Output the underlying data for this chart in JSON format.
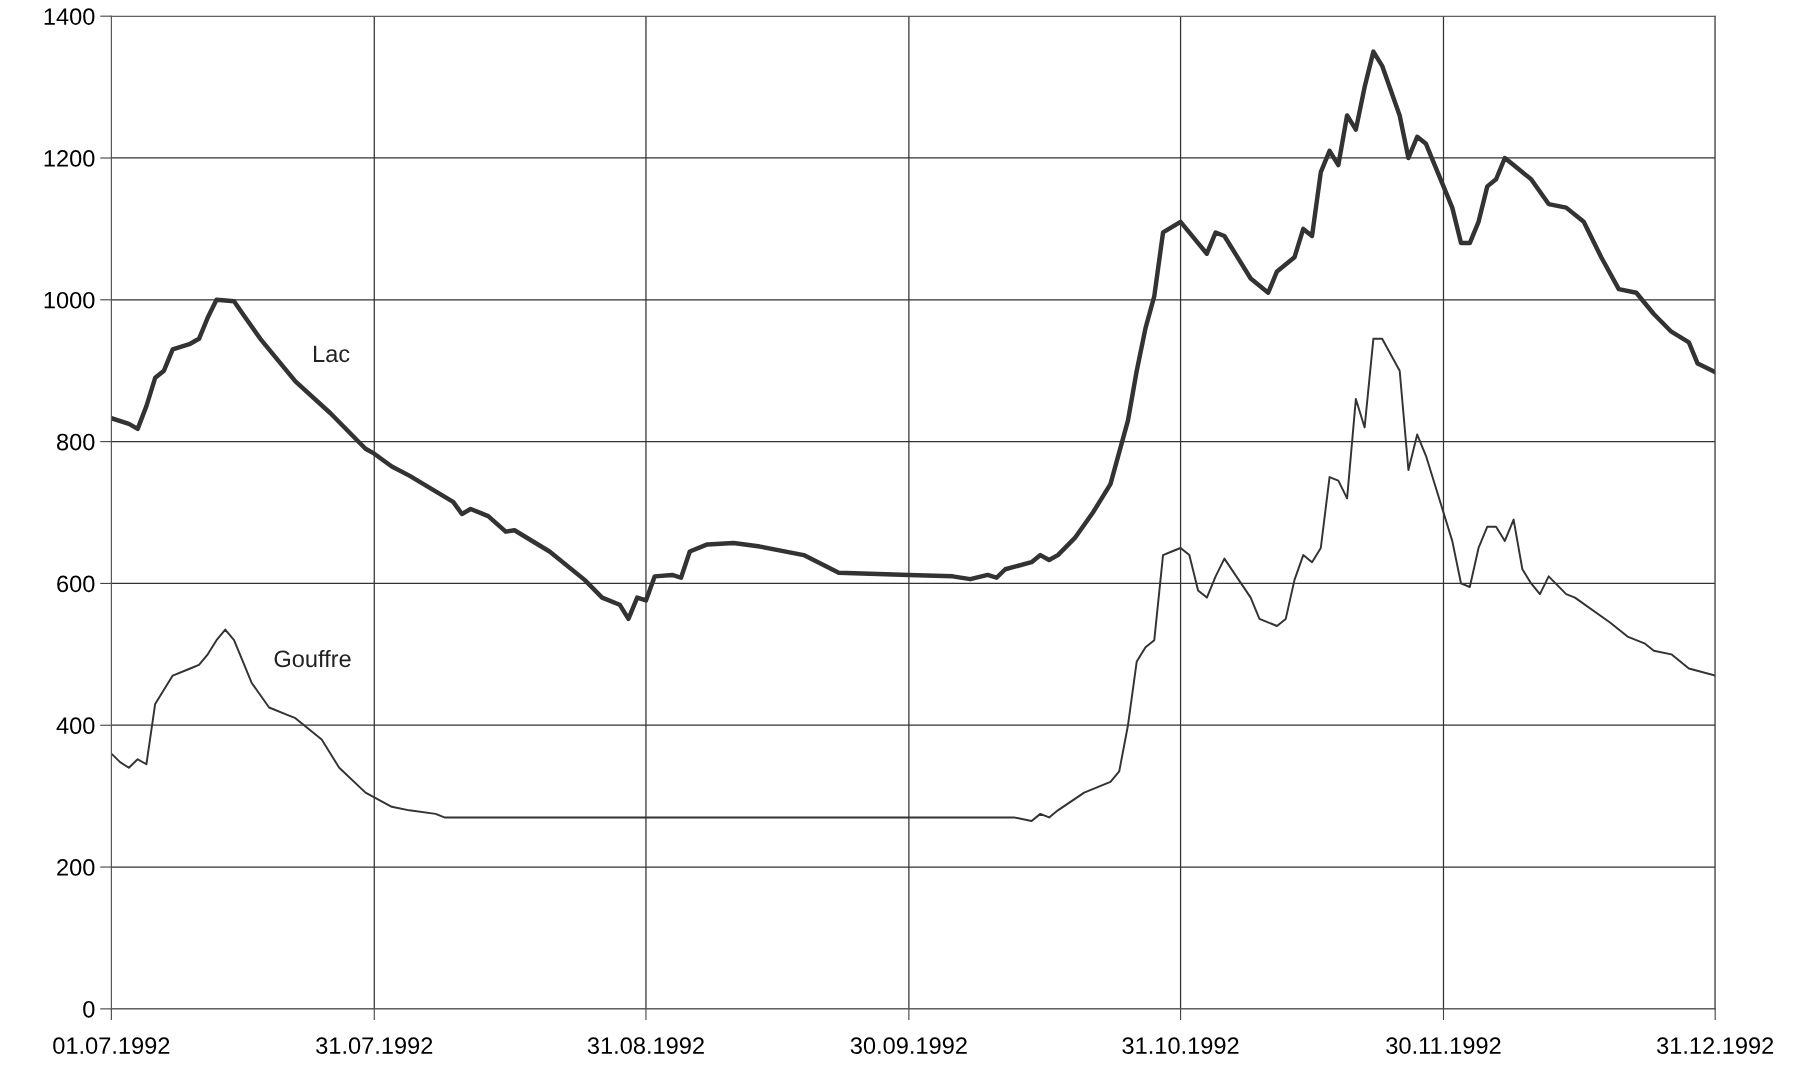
{
  "chart_data": {
    "type": "line",
    "grid": true,
    "legend": false,
    "line_style": "solid",
    "marker": "none",
    "ylim": [
      0,
      1400
    ],
    "yticks": [
      0,
      200,
      400,
      600,
      800,
      1000,
      1200,
      1400
    ],
    "xlim": [
      "1992-07-01",
      "1992-12-31"
    ],
    "xticks": [
      {
        "value": "1992-07-01",
        "label": "01.07.1992"
      },
      {
        "value": "1992-07-31",
        "label": "31.07.1992"
      },
      {
        "value": "1992-08-31",
        "label": "31.08.1992"
      },
      {
        "value": "1992-09-30",
        "label": "30.09.1992"
      },
      {
        "value": "1992-10-31",
        "label": "31.10.1992"
      },
      {
        "value": "1992-11-30",
        "label": "30.11.1992"
      },
      {
        "value": "1992-12-31",
        "label": "31.12.1992"
      }
    ],
    "series": [
      {
        "name": "Lac",
        "color": "#333333",
        "x": [
          "1992-07-01",
          "1992-07-03",
          "1992-07-04",
          "1992-07-05",
          "1992-07-06",
          "1992-07-07",
          "1992-07-08",
          "1992-07-10",
          "1992-07-11",
          "1992-07-12",
          "1992-07-13",
          "1992-07-15",
          "1992-07-16",
          "1992-07-18",
          "1992-07-22",
          "1992-07-26",
          "1992-07-30",
          "1992-07-31",
          "1992-08-02",
          "1992-08-04",
          "1992-08-09",
          "1992-08-10",
          "1992-08-11",
          "1992-08-13",
          "1992-08-15",
          "1992-08-16",
          "1992-08-20",
          "1992-08-24",
          "1992-08-26",
          "1992-08-28",
          "1992-08-29",
          "1992-08-30",
          "1992-08-31",
          "1992-09-01",
          "1992-09-03",
          "1992-09-04",
          "1992-09-05",
          "1992-09-07",
          "1992-09-10",
          "1992-09-13",
          "1992-09-18",
          "1992-09-22",
          "1992-09-30",
          "1992-10-05",
          "1992-10-07",
          "1992-10-09",
          "1992-10-10",
          "1992-10-11",
          "1992-10-14",
          "1992-10-15",
          "1992-10-16",
          "1992-10-17",
          "1992-10-19",
          "1992-10-21",
          "1992-10-23",
          "1992-10-25",
          "1992-10-26",
          "1992-10-27",
          "1992-10-28",
          "1992-10-29",
          "1992-10-31",
          "1992-11-02",
          "1992-11-03",
          "1992-11-04",
          "1992-11-05",
          "1992-11-08",
          "1992-11-10",
          "1992-11-11",
          "1992-11-13",
          "1992-11-14",
          "1992-11-15",
          "1992-11-16",
          "1992-11-17",
          "1992-11-18",
          "1992-11-19",
          "1992-11-20",
          "1992-11-21",
          "1992-11-22",
          "1992-11-23",
          "1992-11-25",
          "1992-11-26",
          "1992-11-27",
          "1992-11-28",
          "1992-11-29",
          "1992-12-01",
          "1992-12-02",
          "1992-12-03",
          "1992-12-04",
          "1992-12-05",
          "1992-12-06",
          "1992-12-07",
          "1992-12-08",
          "1992-12-10",
          "1992-12-12",
          "1992-12-14",
          "1992-12-16",
          "1992-12-18",
          "1992-12-20",
          "1992-12-22",
          "1992-12-24",
          "1992-12-26",
          "1992-12-28",
          "1992-12-29",
          "1992-12-31"
        ],
        "values": [
          833,
          825,
          818,
          850,
          890,
          900,
          930,
          938,
          945,
          975,
          1000,
          998,
          980,
          945,
          885,
          840,
          790,
          783,
          765,
          752,
          715,
          698,
          705,
          695,
          673,
          675,
          645,
          605,
          580,
          570,
          550,
          580,
          576,
          610,
          612,
          608,
          645,
          655,
          657,
          652,
          640,
          615,
          612,
          610,
          606,
          612,
          608,
          620,
          630,
          640,
          633,
          640,
          665,
          700,
          740,
          830,
          900,
          960,
          1005,
          1095,
          1110,
          1080,
          1065,
          1095,
          1090,
          1030,
          1010,
          1040,
          1060,
          1100,
          1090,
          1180,
          1210,
          1190,
          1260,
          1240,
          1300,
          1350,
          1330,
          1260,
          1200,
          1230,
          1220,
          1190,
          1130,
          1080,
          1080,
          1110,
          1160,
          1170,
          1200,
          1190,
          1170,
          1135,
          1130,
          1110,
          1060,
          1015,
          1010,
          980,
          955,
          940,
          910,
          898
        ]
      },
      {
        "name": "Gouffre",
        "color": "#333333",
        "x": [
          "1992-07-01",
          "1992-07-02",
          "1992-07-03",
          "1992-07-04",
          "1992-07-05",
          "1992-07-06",
          "1992-07-07",
          "1992-07-08",
          "1992-07-10",
          "1992-07-11",
          "1992-07-12",
          "1992-07-13",
          "1992-07-14",
          "1992-07-15",
          "1992-07-16",
          "1992-07-17",
          "1992-07-19",
          "1992-07-21",
          "1992-07-22",
          "1992-07-25",
          "1992-07-27",
          "1992-07-30",
          "1992-08-02",
          "1992-08-04",
          "1992-08-07",
          "1992-08-08",
          "1992-09-05",
          "1992-10-12",
          "1992-10-14",
          "1992-10-15",
          "1992-10-16",
          "1992-10-17",
          "1992-10-20",
          "1992-10-23",
          "1992-10-24",
          "1992-10-25",
          "1992-10-26",
          "1992-10-27",
          "1992-10-28",
          "1992-10-29",
          "1992-10-30",
          "1992-10-31",
          "1992-11-01",
          "1992-11-02",
          "1992-11-03",
          "1992-11-04",
          "1992-11-05",
          "1992-11-08",
          "1992-11-09",
          "1992-11-11",
          "1992-11-12",
          "1992-11-13",
          "1992-11-14",
          "1992-11-15",
          "1992-11-16",
          "1992-11-17",
          "1992-11-18",
          "1992-11-19",
          "1992-11-20",
          "1992-11-21",
          "1992-11-22",
          "1992-11-23",
          "1992-11-25",
          "1992-11-26",
          "1992-11-27",
          "1992-11-28",
          "1992-12-01",
          "1992-12-02",
          "1992-12-03",
          "1992-12-04",
          "1992-12-05",
          "1992-12-06",
          "1992-12-07",
          "1992-12-08",
          "1992-12-09",
          "1992-12-10",
          "1992-12-11",
          "1992-12-12",
          "1992-12-14",
          "1992-12-15",
          "1992-12-19",
          "1992-12-21",
          "1992-12-23",
          "1992-12-24",
          "1992-12-26",
          "1992-12-28",
          "1992-12-31"
        ],
        "values": [
          360,
          348,
          340,
          352,
          345,
          430,
          450,
          470,
          480,
          485,
          500,
          520,
          535,
          520,
          490,
          460,
          425,
          415,
          410,
          380,
          340,
          305,
          285,
          280,
          275,
          270,
          270,
          270,
          265,
          275,
          270,
          280,
          305,
          320,
          335,
          400,
          490,
          510,
          520,
          640,
          645,
          650,
          640,
          590,
          580,
          610,
          635,
          580,
          550,
          540,
          550,
          605,
          640,
          630,
          650,
          750,
          745,
          720,
          860,
          820,
          945,
          945,
          900,
          760,
          810,
          780,
          660,
          600,
          595,
          650,
          680,
          680,
          660,
          690,
          620,
          600,
          585,
          610,
          585,
          580,
          545,
          525,
          515,
          505,
          500,
          480,
          470
        ]
      }
    ]
  }
}
